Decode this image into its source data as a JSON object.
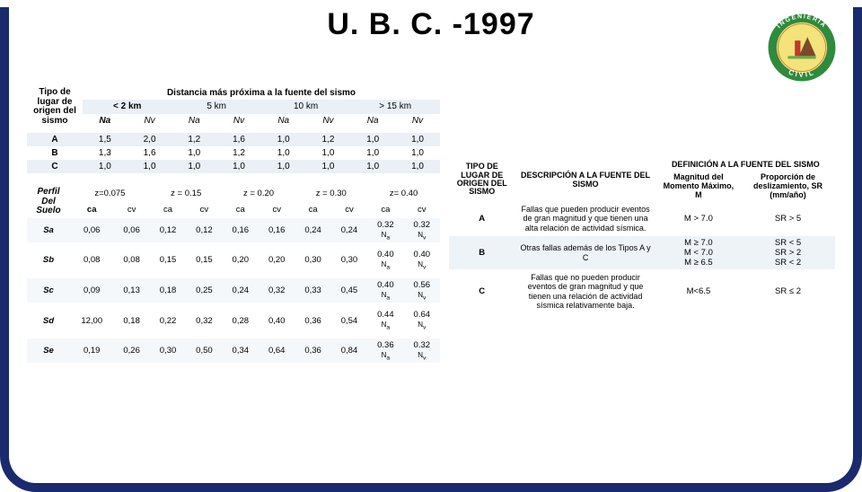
{
  "page": {
    "title": "U. B. C. -1997",
    "colors": {
      "frame": "#1a2a6c",
      "header_band": "#eaf0f6",
      "row_alt": "#f4f8fb",
      "text": "#000000",
      "bg": "#ffffff"
    },
    "font_family": "Arial"
  },
  "logo": {
    "outer_ring_text_top": "INGENIERIA",
    "outer_ring_text_bottom": "CIVIL",
    "ring_color": "#2e8b3d",
    "center_bg": "#f4e27a"
  },
  "table1": {
    "type": "table",
    "row_header_label": "Tipo de lugar de origen del sismo",
    "group_header": "Distancia más próxima a la fuente del sismo",
    "distance_labels": [
      "< 2 km",
      "5 km",
      "10 km",
      "> 15 km"
    ],
    "sub_cols": [
      "Na",
      "Nv"
    ],
    "rows": [
      {
        "label": "A",
        "values": [
          "1,5",
          "2,0",
          "1,2",
          "1,6",
          "1,0",
          "1,2",
          "1,0",
          "1,0"
        ]
      },
      {
        "label": "B",
        "values": [
          "1,3",
          "1,6",
          "1,0",
          "1,2",
          "1,0",
          "1,0",
          "1,0",
          "1,0"
        ]
      },
      {
        "label": "C",
        "values": [
          "1,0",
          "1,0",
          "1,0",
          "1,0",
          "1,0",
          "1,0",
          "1,0",
          "1,0"
        ]
      }
    ]
  },
  "table2": {
    "type": "table",
    "row_header_label": "Perfil Del Suelo",
    "z_labels": [
      "z=0.075",
      "z = 0.15",
      "z = 0.20",
      "z = 0.30",
      "z= 0.40"
    ],
    "sub_cols": [
      "ca",
      "cv"
    ],
    "rows": [
      {
        "label": "Sa",
        "values": [
          "0,06",
          "0,06",
          "0,12",
          "0,12",
          "0,16",
          "0,16",
          "0,24",
          "0,24",
          "0.32 Na",
          "0.32 Nv"
        ]
      },
      {
        "label": "Sb",
        "values": [
          "0,08",
          "0,08",
          "0,15",
          "0,15",
          "0,20",
          "0,20",
          "0,30",
          "0,30",
          "0.40 Na",
          "0.40 Nv"
        ]
      },
      {
        "label": "Sc",
        "values": [
          "0,09",
          "0,13",
          "0,18",
          "0,25",
          "0,24",
          "0,32",
          "0,33",
          "0,45",
          "0.40 Na",
          "0.56 Nv"
        ]
      },
      {
        "label": "Sd",
        "values": [
          "12,00",
          "0,18",
          "0,22",
          "0,32",
          "0,28",
          "0,40",
          "0,36",
          "0,54",
          "0.44 Na",
          "0.64 Nv"
        ]
      },
      {
        "label": "Se",
        "values": [
          "0,19",
          "0,26",
          "0,30",
          "0,50",
          "0,34",
          "0,64",
          "0,36",
          "0,84",
          "0.36 Na",
          "0.32 Nv"
        ]
      }
    ]
  },
  "table3": {
    "type": "table",
    "headers": {
      "col1": "TIPO DE LUGAR DE ORIGEN DEL SISMO",
      "col2": "DESCRIPCIÓN A LA FUENTE DEL SISMO",
      "group3": "DEFINICIÓN  A LA FUENTE DEL SISMO",
      "col3a": "Magnitud del Momento Máximo, M",
      "col3b": "Proporción de deslizamiento, SR (mm/año)"
    },
    "rows": [
      {
        "label": "A",
        "desc": "Fallas que pueden producir eventos de gran magnitud y que tienen una alta relación de actividad sísmica.",
        "mag": "M > 7.0",
        "sr": "SR > 5"
      },
      {
        "label": "B",
        "desc": "Otras fallas además de los Tipos  A y C",
        "mag": "M  ≥ 7.0\nM < 7.0\nM ≥ 6.5",
        "sr": "SR < 5\nSR > 2\nSR < 2"
      },
      {
        "label": "C",
        "desc": "Fallas que  no pueden producir eventos de gran magnitud y que tienen una relación de actividad sísmica relativamente baja.",
        "mag": "M<6.5",
        "sr": "SR ≤ 2"
      }
    ]
  }
}
